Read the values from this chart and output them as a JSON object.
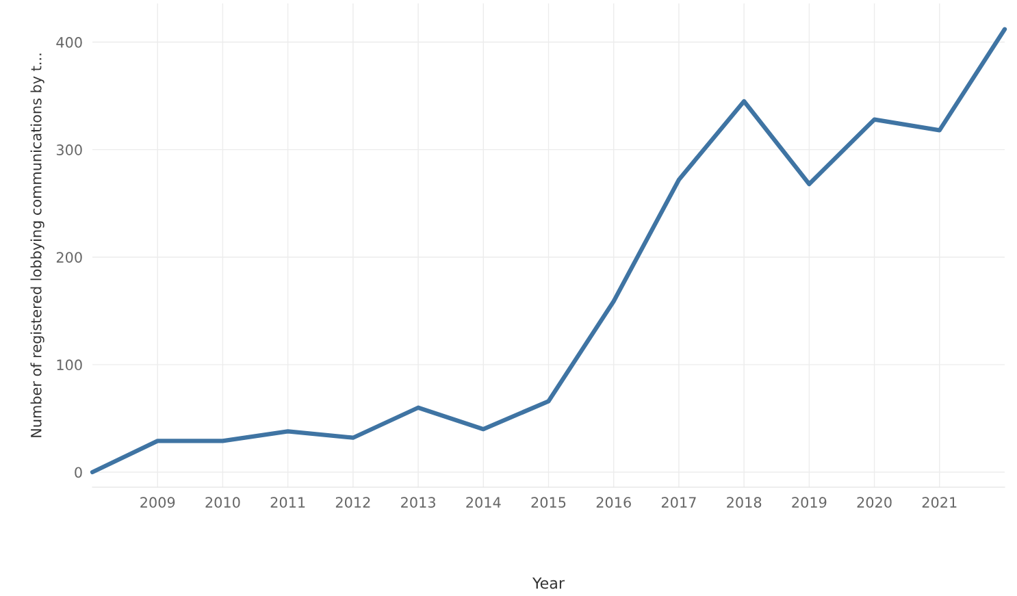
{
  "chart_data": {
    "type": "line",
    "xlabel": "Year",
    "ylabel": "Number of registered lobbying communications by t...",
    "x": [
      2008,
      2009,
      2010,
      2011,
      2012,
      2013,
      2014,
      2015,
      2016,
      2017,
      2018,
      2019,
      2020,
      2021,
      2022
    ],
    "series": [
      {
        "color": "#3f74a3",
        "values": [
          0,
          29,
          29,
          38,
          32,
          60,
          40,
          66,
          159,
          272,
          345,
          268,
          328,
          318,
          412
        ]
      }
    ],
    "xlim": [
      2008,
      2022
    ],
    "xticks": [
      2009,
      2010,
      2011,
      2012,
      2013,
      2014,
      2015,
      2016,
      2017,
      2018,
      2019,
      2020,
      2021
    ],
    "ylim": [
      -14,
      436
    ],
    "yticks": [
      0,
      100,
      200,
      300,
      400
    ],
    "grid": true,
    "marker": "none",
    "line_style": "solid"
  }
}
